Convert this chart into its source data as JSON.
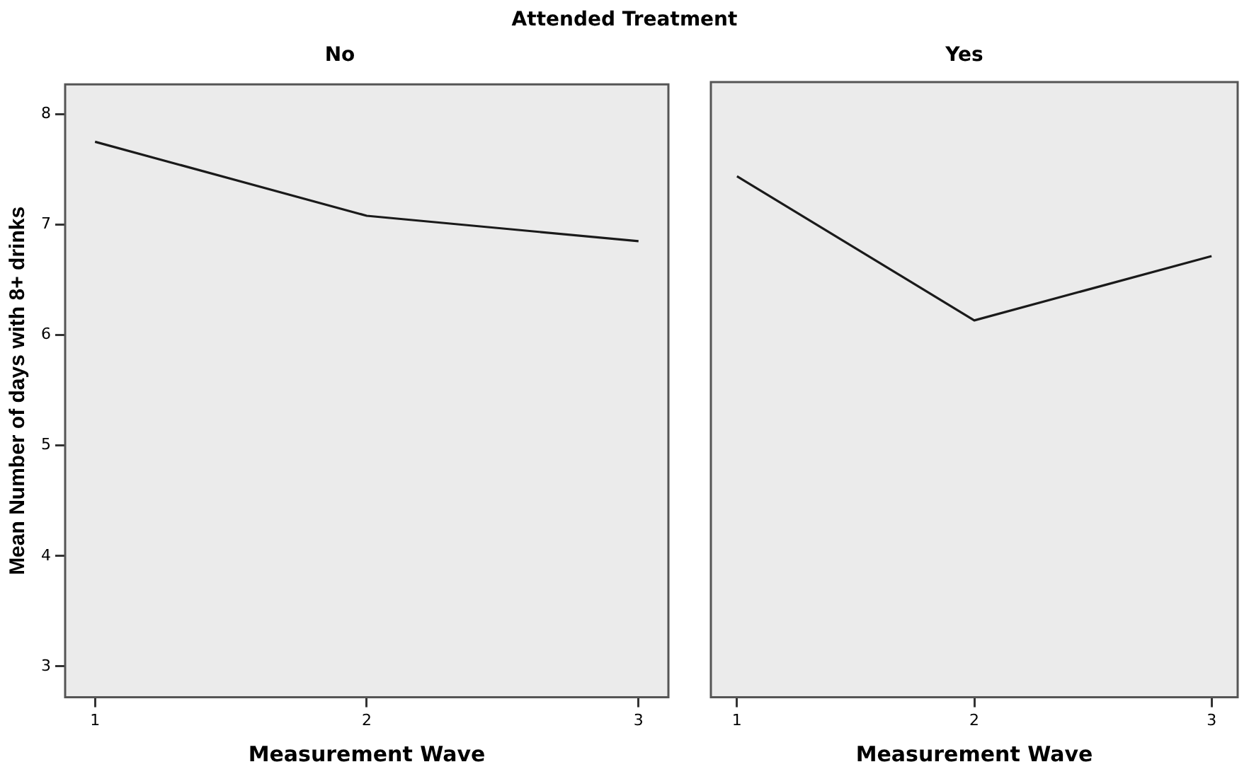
{
  "chart_data": [
    {
      "type": "line",
      "title": "Attended Treatment",
      "subtitle": "No",
      "xlabel": "Measurement Wave",
      "ylabel": "Mean Number of days with 8+ drinks",
      "x": [
        1,
        2,
        3
      ],
      "series": [
        {
          "color": "#1a1a1a",
          "values": [
            7.75,
            7.08,
            6.85
          ]
        }
      ],
      "xlim": [
        0.89,
        3.11
      ],
      "xticks": [
        1,
        2,
        3
      ],
      "ylim": [
        2.72,
        8.27
      ],
      "yticks": [
        3,
        4,
        5,
        6,
        7,
        8
      ],
      "grid": false,
      "legend": false,
      "marker": "none"
    },
    {
      "type": "line",
      "subtitle": "Yes",
      "xlabel": "Measurement Wave",
      "x": [
        1,
        2,
        3
      ],
      "series": [
        {
          "color": "#1a1a1a",
          "values": [
            7.42,
            6.12,
            6.7
          ]
        }
      ],
      "xlim": [
        0.89,
        3.11
      ],
      "xticks": [
        1,
        2,
        3
      ],
      "ylim": [
        2.72,
        8.27
      ],
      "yticks": [
        3,
        4,
        5,
        6,
        7,
        8
      ],
      "tick_labels": "x",
      "grid": false,
      "legend": false,
      "marker": "none"
    }
  ]
}
